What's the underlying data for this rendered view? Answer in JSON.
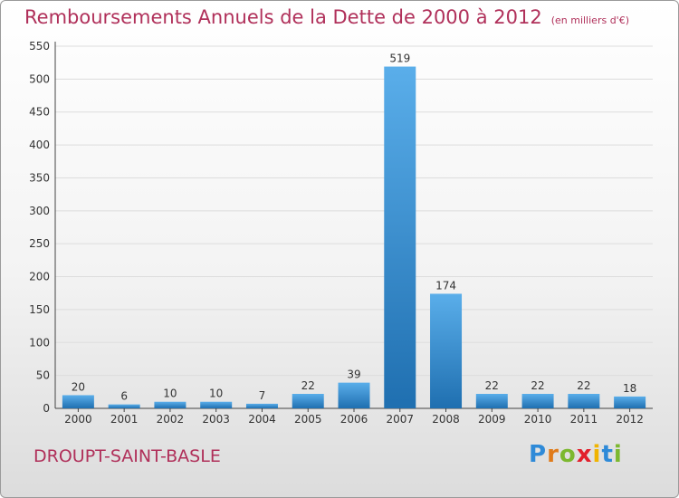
{
  "title": "Remboursements Annuels de la Dette de 2000 à 2012",
  "unit": "(en milliers d'€)",
  "commune": "DROUPT-SAINT-BASLE",
  "logo": "Proxiti",
  "colors": {
    "title": "#b0305a",
    "bar_top": "#5aaeea",
    "bar_bottom": "#1f6fb0",
    "grid": "#dddddd"
  },
  "chart_data": {
    "type": "bar",
    "title": "Remboursements Annuels de la Dette de 2000 à 2012",
    "xlabel": "",
    "ylabel": "",
    "categories": [
      "2000",
      "2001",
      "2002",
      "2003",
      "2004",
      "2005",
      "2006",
      "2007",
      "2008",
      "2009",
      "2010",
      "2011",
      "2012"
    ],
    "values": [
      20,
      6,
      10,
      10,
      7,
      22,
      39,
      519,
      174,
      22,
      22,
      22,
      18
    ],
    "ylim": [
      0,
      550
    ],
    "yticks": [
      0,
      50,
      100,
      150,
      200,
      250,
      300,
      350,
      400,
      450,
      500,
      550
    ],
    "grid": true,
    "data_labels": true
  }
}
